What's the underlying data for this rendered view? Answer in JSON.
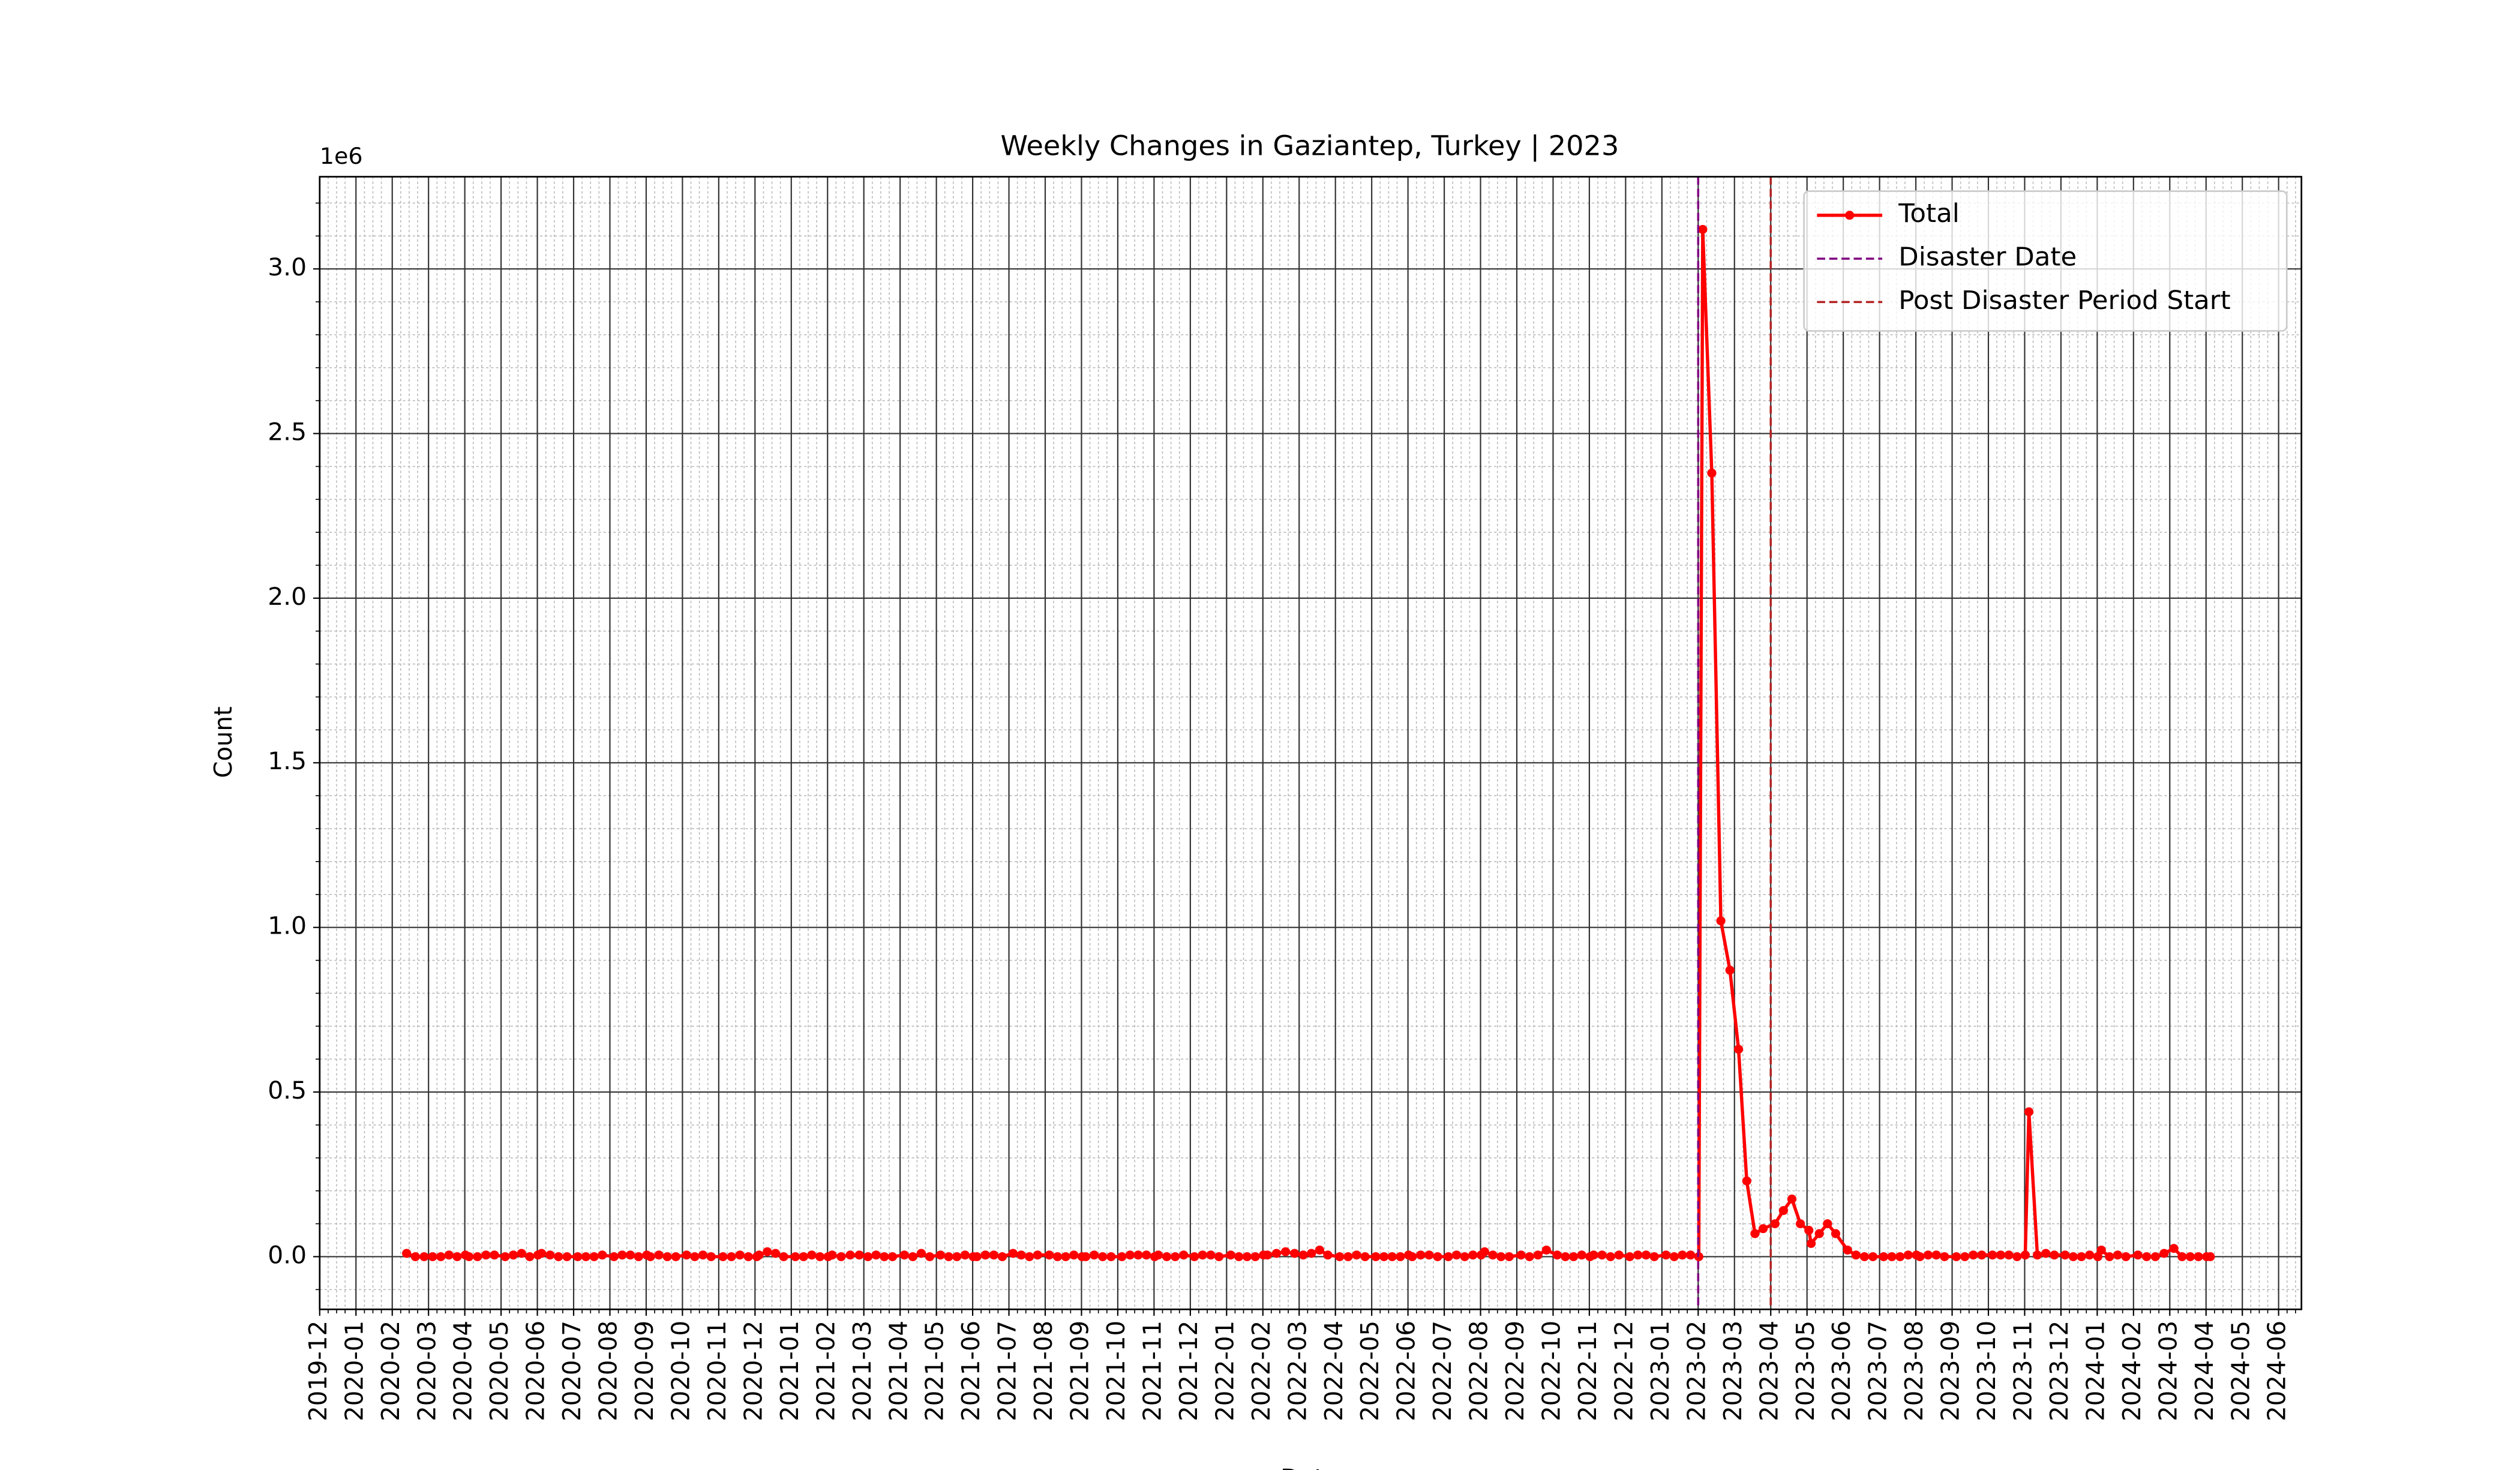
{
  "chart_data": {
    "type": "line",
    "title": "Weekly Changes in Gaziantep, Turkey | 2023",
    "x_label": "Date",
    "y_label": "Count",
    "y_offset_label": "1e6",
    "xlim": [
      "2019-12",
      "2024-06"
    ],
    "xticks": [
      "2019-12",
      "2020-01",
      "2020-02",
      "2020-03",
      "2020-04",
      "2020-05",
      "2020-06",
      "2020-07",
      "2020-08",
      "2020-09",
      "2020-10",
      "2020-11",
      "2020-12",
      "2021-01",
      "2021-02",
      "2021-03",
      "2021-04",
      "2021-05",
      "2021-06",
      "2021-07",
      "2021-08",
      "2021-09",
      "2021-10",
      "2021-11",
      "2021-12",
      "2022-01",
      "2022-02",
      "2022-03",
      "2022-04",
      "2022-05",
      "2022-06",
      "2022-07",
      "2022-08",
      "2022-09",
      "2022-10",
      "2022-11",
      "2022-12",
      "2023-01",
      "2023-02",
      "2023-03",
      "2023-04",
      "2023-05",
      "2023-06",
      "2023-07",
      "2023-08",
      "2023-09",
      "2023-10",
      "2023-11",
      "2023-12",
      "2024-01",
      "2024-02",
      "2024-03",
      "2024-04",
      "2024-05",
      "2024-06"
    ],
    "ylim": [
      -0.16,
      3.28
    ],
    "yticks": [
      {
        "value": 0,
        "label": "0.0"
      },
      0.5,
      {
        "value": 1,
        "label": "1.0"
      },
      1.5,
      {
        "value": 2,
        "label": "2.0"
      },
      2.5,
      {
        "value": 3,
        "label": "3.0"
      }
    ],
    "grid": true,
    "legend": "upper right",
    "x": [
      "2020-02",
      "2020-02",
      "2020-02",
      "2020-03",
      "2020-03",
      "2020-03",
      "2020-03",
      "2020-03",
      "2020-04",
      "2020-04",
      "2020-04",
      "2020-04",
      "2020-05",
      "2020-05",
      "2020-05",
      "2020-05",
      "2020-05",
      "2020-06",
      "2020-06",
      "2020-06",
      "2020-06",
      "2020-07",
      "2020-07",
      "2020-07",
      "2020-07",
      "2020-08",
      "2020-08",
      "2020-08",
      "2020-08",
      "2020-08",
      "2020-09",
      "2020-09",
      "2020-09",
      "2020-09",
      "2020-10",
      "2020-10",
      "2020-10",
      "2020-10",
      "2020-11",
      "2020-11",
      "2020-11",
      "2020-11",
      "2020-11",
      "2020-12",
      "2020-12",
      "2020-12",
      "2020-12",
      "2021-01",
      "2021-01",
      "2021-01",
      "2021-01",
      "2021-01",
      "2021-02",
      "2021-02",
      "2021-02",
      "2021-02",
      "2021-03",
      "2021-03",
      "2021-03",
      "2021-03",
      "2021-04",
      "2021-04",
      "2021-04",
      "2021-04",
      "2021-05",
      "2021-05",
      "2021-05",
      "2021-05",
      "2021-05",
      "2021-06",
      "2021-06",
      "2021-06",
      "2021-06",
      "2021-07",
      "2021-07",
      "2021-07",
      "2021-07",
      "2021-08",
      "2021-08",
      "2021-08",
      "2021-08",
      "2021-08",
      "2021-09",
      "2021-09",
      "2021-09",
      "2021-09",
      "2021-10",
      "2021-10",
      "2021-10",
      "2021-10",
      "2021-10",
      "2021-11",
      "2021-11",
      "2021-11",
      "2021-11",
      "2021-12",
      "2021-12",
      "2021-12",
      "2021-12",
      "2022-01",
      "2022-01",
      "2022-01",
      "2022-01",
      "2022-01",
      "2022-02",
      "2022-02",
      "2022-02",
      "2022-02",
      "2022-03",
      "2022-03",
      "2022-03",
      "2022-03",
      "2022-04",
      "2022-04",
      "2022-04",
      "2022-04",
      "2022-05",
      "2022-05",
      "2022-05",
      "2022-05",
      "2022-05",
      "2022-06",
      "2022-06",
      "2022-06",
      "2022-06",
      "2022-07",
      "2022-07",
      "2022-07",
      "2022-07",
      "2022-07",
      "2022-08",
      "2022-08",
      "2022-08",
      "2022-08",
      "2022-09",
      "2022-09",
      "2022-09",
      "2022-09",
      "2022-10",
      "2022-10",
      "2022-10",
      "2022-10",
      "2022-10",
      "2022-11",
      "2022-11",
      "2022-11",
      "2022-11",
      "2022-12",
      "2022-12",
      "2022-12",
      "2022-12",
      "2023-01",
      "2023-01",
      "2023-01",
      "2023-01",
      "2023-01",
      "2023-02",
      "2023-02",
      "2023-02",
      "2023-02",
      "2023-03",
      "2023-03",
      "2023-03",
      "2023-03",
      "2023-04",
      "2023-04",
      "2023-04",
      "2023-04",
      "2023-04",
      "2023-05",
      "2023-05",
      "2023-05",
      "2023-05",
      "2023-06",
      "2023-06",
      "2023-06",
      "2023-06",
      "2023-07",
      "2023-07",
      "2023-07",
      "2023-07",
      "2023-07",
      "2023-08",
      "2023-08",
      "2023-08",
      "2023-08",
      "2023-09",
      "2023-09",
      "2023-09",
      "2023-09",
      "2023-10",
      "2023-10",
      "2023-10",
      "2023-10",
      "2023-10",
      "2023-11",
      "2023-11",
      "2023-11",
      "2023-11",
      "2023-12",
      "2023-12",
      "2023-12",
      "2023-12",
      "2023-12",
      "2024-01",
      "2024-01",
      "2024-01",
      "2024-01",
      "2024-02",
      "2024-02",
      "2024-02",
      "2024-02",
      "2024-03",
      "2024-03",
      "2024-03",
      "2024-03",
      "2024-03",
      "2024-04"
    ],
    "series": [
      {
        "name": "Total",
        "color": "#ff0000",
        "values": [
          0.01,
          0.0,
          0.0,
          0.0,
          0.0,
          0.005,
          0.0,
          0.005,
          0.0,
          0.0,
          0.005,
          0.005,
          0.0,
          0.005,
          0.01,
          0.0,
          0.005,
          0.01,
          0.005,
          0.0,
          0.0,
          0.0,
          0.0,
          0.0,
          0.005,
          0.0,
          0.005,
          0.005,
          0.0,
          0.005,
          0.0,
          0.005,
          0.0,
          0.0,
          0.005,
          0.0,
          0.005,
          0.0,
          0.0,
          0.0,
          0.005,
          0.0,
          0.0,
          0.005,
          0.015,
          0.01,
          0.0,
          0.0,
          0.0,
          0.005,
          0.0,
          0.0,
          0.005,
          0.0,
          0.005,
          0.005,
          0.0,
          0.005,
          0.0,
          0.0,
          0.005,
          0.0,
          0.01,
          0.0,
          0.005,
          0.0,
          0.0,
          0.005,
          0.0,
          0.0,
          0.005,
          0.005,
          0.0,
          0.01,
          0.005,
          0.0,
          0.005,
          0.005,
          0.0,
          0.0,
          0.005,
          0.0,
          0.0,
          0.005,
          0.0,
          0.0,
          0.0,
          0.005,
          0.005,
          0.005,
          0.0,
          0.005,
          0.0,
          0.0,
          0.005,
          0.0,
          0.005,
          0.005,
          0.0,
          0.005,
          0.0,
          0.0,
          0.0,
          0.005,
          0.005,
          0.01,
          0.015,
          0.01,
          0.005,
          0.01,
          0.02,
          0.005,
          0.0,
          0.0,
          0.005,
          0.0,
          0.0,
          0.0,
          0.0,
          0.0,
          0.005,
          0.0,
          0.005,
          0.005,
          0.0,
          0.0,
          0.005,
          0.0,
          0.005,
          0.005,
          0.015,
          0.005,
          0.0,
          0.0,
          0.005,
          0.0,
          0.005,
          0.02,
          0.005,
          0.0,
          0.0,
          0.005,
          0.0,
          0.005,
          0.005,
          0.0,
          0.005,
          0.0,
          0.005,
          0.005,
          0.0,
          0.005,
          0.0,
          0.005,
          0.005,
          0.0,
          3.12,
          2.38,
          1.02,
          0.87,
          0.63,
          0.23,
          0.07,
          0.085,
          0.1,
          0.14,
          0.175,
          0.1,
          0.08,
          0.04,
          0.07,
          0.1,
          0.07,
          0.02,
          0.005,
          0.0,
          0.0,
          0.0,
          0.0,
          0.0,
          0.005,
          0.005,
          0.0,
          0.005,
          0.005,
          0.0,
          0.0,
          0.0,
          0.005,
          0.005,
          0.005,
          0.005,
          0.005,
          0.0,
          0.005,
          0.44,
          0.005,
          0.01,
          0.005,
          0.005,
          0.0,
          0.0,
          0.005,
          0.0,
          0.02,
          0.0,
          0.005,
          0.0,
          0.005,
          0.0,
          0.0,
          0.01,
          0.025,
          0.0,
          0.0,
          0.0,
          0.0,
          0.0
        ]
      }
    ],
    "vlines": [
      {
        "name": "Disaster Date",
        "x": "2023-02",
        "color": "#800080"
      },
      {
        "name": "Post Disaster Period Start",
        "x": "2023-04",
        "color": "#b22222"
      }
    ]
  }
}
